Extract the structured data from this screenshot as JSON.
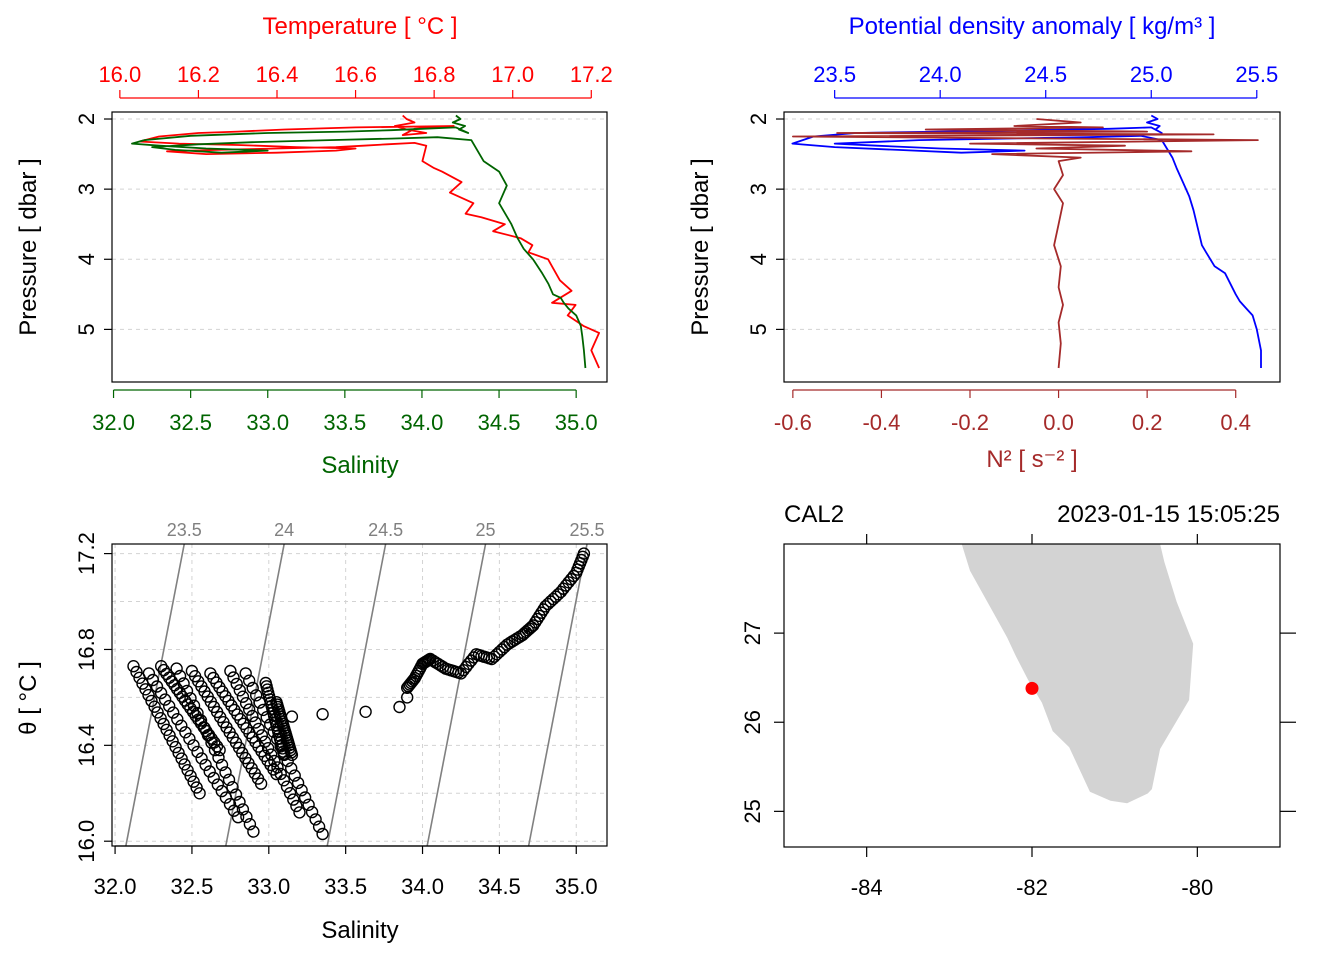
{
  "colors": {
    "temperature": "#ff0000",
    "salinity": "#006400",
    "density": "#0000ff",
    "n2": "#a52a2a",
    "isopycnal": "#808080",
    "land": "#d3d3d3",
    "station": "#ff0000",
    "grid": "#d3d3d3",
    "axis": "#000000"
  },
  "chart_data": [
    {
      "type": "line",
      "panel": "profile-temperature-salinity",
      "ylabel": "Pressure [ dbar ]",
      "ylim": [
        5.75,
        1.9
      ],
      "yticks": [
        2,
        3,
        4,
        5
      ],
      "ytick_labels": [
        "2",
        "3",
        "4",
        "5"
      ],
      "top_axis": {
        "label": "Temperature [ °C ]",
        "lim": [
          15.98,
          17.24
        ],
        "ticks": [
          16.0,
          16.2,
          16.4,
          16.6,
          16.8,
          17.0,
          17.2
        ],
        "tick_labels": [
          "16.0",
          "16.2",
          "16.4",
          "16.6",
          "16.8",
          "17.0",
          "17.2"
        ]
      },
      "bottom_axis": {
        "label": "Salinity",
        "lim": [
          31.99,
          35.2
        ],
        "ticks": [
          32.0,
          32.5,
          33.0,
          33.5,
          34.0,
          34.5,
          35.0
        ],
        "tick_labels": [
          "32.0",
          "32.5",
          "33.0",
          "33.5",
          "34.0",
          "34.5",
          "35.0"
        ]
      },
      "series": [
        {
          "name": "Temperature",
          "axis": "top",
          "x": [
            16.72,
            16.73,
            16.75,
            16.7,
            16.73,
            16.78,
            16.72,
            16.75,
            16.8,
            16.85,
            16.6,
            16.42,
            16.3,
            16.2,
            16.1,
            16.05,
            16.15,
            16.3,
            16.45,
            16.6,
            16.55,
            16.4,
            16.22,
            16.12,
            16.25,
            16.4,
            16.55,
            16.62,
            16.68,
            16.75,
            16.78,
            16.77,
            16.8,
            16.82,
            16.87,
            16.84,
            16.9,
            16.88,
            16.92,
            16.98,
            16.95,
            17.02,
            17.05,
            17.04,
            17.09,
            17.1,
            17.12,
            17.15,
            17.1,
            17.16,
            17.14,
            17.18,
            17.22,
            17.2,
            17.22
          ],
          "y": [
            1.95,
            2.0,
            2.05,
            2.1,
            2.15,
            2.2,
            2.23,
            2.14,
            2.12,
            2.1,
            2.12,
            2.15,
            2.18,
            2.2,
            2.25,
            2.32,
            2.35,
            2.37,
            2.4,
            2.42,
            2.45,
            2.48,
            2.5,
            2.46,
            2.44,
            2.42,
            2.4,
            2.38,
            2.36,
            2.34,
            2.38,
            2.6,
            2.7,
            2.75,
            2.9,
            3.05,
            3.2,
            3.35,
            3.4,
            3.5,
            3.6,
            3.7,
            3.8,
            3.9,
            4.0,
            4.1,
            4.3,
            4.45,
            4.62,
            4.65,
            4.8,
            4.95,
            5.05,
            5.3,
            5.55
          ]
        },
        {
          "name": "Salinity",
          "axis": "bottom",
          "x": [
            34.22,
            34.25,
            34.2,
            34.28,
            34.24,
            34.3,
            34.22,
            34.0,
            33.8,
            33.5,
            33.0,
            32.5,
            32.2,
            32.12,
            32.3,
            32.6,
            33.0,
            32.7,
            32.4,
            32.25,
            32.55,
            32.9,
            33.4,
            33.8,
            34.1,
            34.32,
            34.4,
            34.5,
            34.55,
            34.5,
            34.58,
            34.62,
            34.66,
            34.72,
            34.75,
            34.78,
            34.82,
            34.85,
            34.9,
            34.92,
            34.95,
            35.0,
            35.03,
            35.04,
            35.05,
            35.06
          ],
          "y": [
            1.95,
            2.0,
            2.05,
            2.1,
            2.15,
            2.2,
            2.12,
            2.14,
            2.16,
            2.18,
            2.2,
            2.24,
            2.3,
            2.35,
            2.38,
            2.42,
            2.45,
            2.48,
            2.44,
            2.4,
            2.36,
            2.33,
            2.3,
            2.28,
            2.26,
            2.3,
            2.6,
            2.75,
            2.95,
            3.2,
            3.5,
            3.7,
            3.85,
            4.0,
            4.1,
            4.2,
            4.35,
            4.5,
            4.55,
            4.62,
            4.7,
            4.8,
            4.95,
            5.1,
            5.3,
            5.55
          ]
        }
      ]
    },
    {
      "type": "line",
      "panel": "profile-density-n2",
      "ylabel": "Pressure [ dbar ]",
      "ylim": [
        5.75,
        1.9
      ],
      "yticks": [
        2,
        3,
        4,
        5
      ],
      "ytick_labels": [
        "2",
        "3",
        "4",
        "5"
      ],
      "top_axis": {
        "label": "Potential density anomaly [ kg/m³ ]",
        "lim": [
          23.26,
          25.61
        ],
        "ticks": [
          23.5,
          24.0,
          24.5,
          25.0,
          25.5
        ],
        "tick_labels": [
          "23.5",
          "24.0",
          "24.5",
          "25.0",
          "25.5"
        ]
      },
      "bottom_axis": {
        "label": "N² [ s⁻² ]",
        "lim": [
          -0.62,
          0.5
        ],
        "ticks": [
          -0.6,
          -0.4,
          -0.2,
          0.0,
          0.2,
          0.4
        ],
        "tick_labels": [
          "-0.6",
          "-0.4",
          "-0.2",
          "0.0",
          "0.2",
          "0.4"
        ]
      },
      "series": [
        {
          "name": "Potential density anomaly",
          "axis": "top",
          "x": [
            25.0,
            25.03,
            24.98,
            25.04,
            25.02,
            25.05,
            25.0,
            24.8,
            24.4,
            24.0,
            23.6,
            23.4,
            23.3,
            23.5,
            23.8,
            24.1,
            24.4,
            24.0,
            23.7,
            23.5,
            23.9,
            24.3,
            24.7,
            24.95,
            25.05,
            25.1,
            25.12,
            25.15,
            25.18,
            25.2,
            25.22,
            25.24,
            25.26,
            25.3,
            25.35,
            25.4,
            25.42,
            25.45,
            25.48,
            25.5,
            25.52,
            25.52
          ],
          "y": [
            1.95,
            2.0,
            2.05,
            2.1,
            2.15,
            2.2,
            2.12,
            2.14,
            2.16,
            2.18,
            2.2,
            2.25,
            2.35,
            2.4,
            2.44,
            2.48,
            2.45,
            2.42,
            2.38,
            2.35,
            2.3,
            2.28,
            2.26,
            2.24,
            2.3,
            2.55,
            2.7,
            2.9,
            3.1,
            3.3,
            3.55,
            3.8,
            3.9,
            4.1,
            4.2,
            4.5,
            4.6,
            4.7,
            4.8,
            5.0,
            5.3,
            5.55
          ]
        },
        {
          "name": "N²",
          "axis": "bottom",
          "x": [
            -0.05,
            0.05,
            -0.1,
            0.1,
            -0.3,
            0.2,
            -0.5,
            0.35,
            -0.6,
            0.45,
            -0.2,
            0.15,
            -0.05,
            0.3,
            -0.15,
            0.05,
            0.0,
            0.01,
            -0.01,
            0.01,
            0.0,
            -0.01,
            0.005,
            0.0,
            0.01,
            0.0,
            0.005,
            0.0
          ],
          "y": [
            2.0,
            2.05,
            2.1,
            2.12,
            2.15,
            2.18,
            2.2,
            2.22,
            2.25,
            2.3,
            2.35,
            2.38,
            2.42,
            2.46,
            2.5,
            2.55,
            2.6,
            2.8,
            3.0,
            3.2,
            3.5,
            3.8,
            4.1,
            4.4,
            4.65,
            4.9,
            5.2,
            5.55
          ]
        }
      ]
    },
    {
      "type": "scatter",
      "panel": "ts-diagram",
      "xlabel": "Salinity",
      "ylabel": "θ [ °C ]",
      "xlim": [
        31.98,
        35.2
      ],
      "ylim": [
        15.98,
        17.24
      ],
      "xticks": [
        32.0,
        32.5,
        33.0,
        33.5,
        34.0,
        34.5,
        35.0
      ],
      "xtick_labels": [
        "32.0",
        "32.5",
        "33.0",
        "33.5",
        "34.0",
        "34.5",
        "35.0"
      ],
      "yticks": [
        16.0,
        16.4,
        16.8,
        17.2
      ],
      "ytick_labels": [
        "16.0",
        "16.4",
        "16.8",
        "17.2"
      ],
      "isopycnals": [
        {
          "label": "23.5",
          "s_bottom": 32.07,
          "s_top": 32.45
        },
        {
          "label": "24",
          "s_bottom": 32.72,
          "s_top": 33.1
        },
        {
          "label": "24.5",
          "s_bottom": 33.38,
          "s_top": 33.76
        },
        {
          "label": "25",
          "s_bottom": 34.03,
          "s_top": 34.41
        },
        {
          "label": "25.5",
          "s_bottom": 34.69,
          "s_top": 35.07
        }
      ],
      "band_starts": [
        {
          "s": 32.12,
          "t": 16.73
        },
        {
          "s": 32.22,
          "t": 16.7
        },
        {
          "s": 32.3,
          "t": 16.73
        },
        {
          "s": 32.4,
          "t": 16.72
        },
        {
          "s": 32.5,
          "t": 16.71
        },
        {
          "s": 32.62,
          "t": 16.7
        },
        {
          "s": 32.75,
          "t": 16.71
        },
        {
          "s": 32.85,
          "t": 16.7
        },
        {
          "s": 32.98,
          "t": 16.66
        },
        {
          "s": 33.05,
          "t": 16.58
        }
      ],
      "band_ends": [
        {
          "s": 32.55,
          "t": 16.2
        },
        {
          "s": 32.8,
          "t": 16.1
        },
        {
          "s": 32.68,
          "t": 16.38
        },
        {
          "s": 32.9,
          "t": 16.04
        },
        {
          "s": 32.95,
          "t": 16.24
        },
        {
          "s": 33.05,
          "t": 16.28
        },
        {
          "s": 33.2,
          "t": 16.12
        },
        {
          "s": 33.35,
          "t": 16.03
        },
        {
          "s": 33.1,
          "t": 16.36
        },
        {
          "s": 33.15,
          "t": 16.36
        }
      ],
      "transition_points": {
        "s": [
          33.15,
          33.35,
          33.63,
          33.85,
          33.9
        ],
        "t": [
          16.52,
          16.53,
          16.54,
          16.56,
          16.6
        ]
      },
      "upper_branch": {
        "s": [
          33.9,
          33.95,
          34.0,
          34.05,
          34.15,
          34.25,
          34.35,
          34.45,
          34.55,
          34.65,
          34.72,
          34.8,
          34.9,
          35.0,
          35.05
        ],
        "t": [
          16.64,
          16.68,
          16.74,
          16.76,
          16.72,
          16.7,
          16.78,
          16.76,
          16.82,
          16.86,
          16.9,
          16.98,
          17.04,
          17.12,
          17.2
        ]
      }
    },
    {
      "type": "map",
      "panel": "station-map",
      "station": "CAL2",
      "time": "2023-01-15 15:05:25",
      "xlim": [
        -85,
        -79
      ],
      "ylim": [
        24.6,
        28.0
      ],
      "xticks": [
        -84,
        -82,
        -80
      ],
      "xtick_labels": [
        "-84",
        "-82",
        "-80"
      ],
      "yticks": [
        25,
        26,
        27
      ],
      "ytick_labels": [
        "25",
        "26",
        "27"
      ],
      "station_lon": -82.0,
      "station_lat": 26.38,
      "land": {
        "lon": [
          -82.85,
          -82.75,
          -82.6,
          -82.45,
          -82.3,
          -82.2,
          -82.05,
          -81.88,
          -81.75,
          -81.55,
          -81.3,
          -81.05,
          -80.85,
          -80.6,
          -80.55,
          -80.45,
          -80.1,
          -80.05,
          -80.25,
          -80.4,
          -80.45
        ],
        "lat": [
          28.0,
          27.7,
          27.45,
          27.2,
          26.95,
          26.75,
          26.48,
          26.22,
          25.9,
          25.72,
          25.22,
          25.12,
          25.09,
          25.2,
          25.25,
          25.7,
          26.25,
          26.88,
          27.35,
          27.8,
          28.0
        ]
      }
    }
  ]
}
